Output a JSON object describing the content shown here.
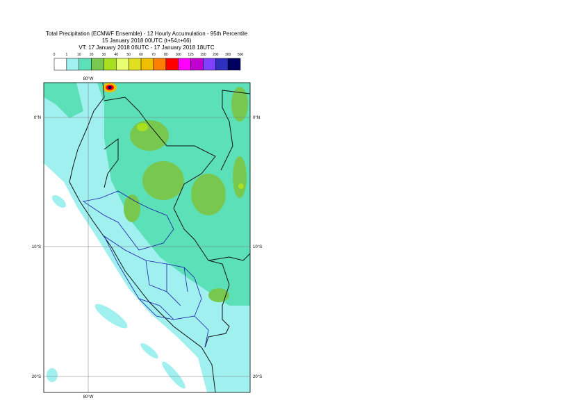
{
  "title": {
    "lines": [
      "Total Precipitation (ECMWF Ensemble) - 12 Hourly Accumulation - 95th Percentile",
      "15 January 2018 00UTC (t+54,t+66)",
      "VT: 17 January 2018 06UTC - 17 January 2018 18UTC"
    ]
  },
  "legend": {
    "labels": [
      "0",
      "1",
      "10",
      "20",
      "30",
      "40",
      "50",
      "60",
      "70",
      "80",
      "100",
      "125",
      "150",
      "200",
      "300",
      "500"
    ],
    "colors": [
      "#ffffff",
      "#a0f0f0",
      "#5ce0b8",
      "#78c850",
      "#a8e020",
      "#e8ff70",
      "#e0e020",
      "#f0c000",
      "#ff8000",
      "#ff0000",
      "#ff00ff",
      "#c000d0",
      "#8040ff",
      "#3030c0",
      "#000060"
    ]
  },
  "map": {
    "lon_labels": [
      "80°W"
    ],
    "lat_labels": [
      "0°N",
      "10°S",
      "20°S"
    ]
  }
}
